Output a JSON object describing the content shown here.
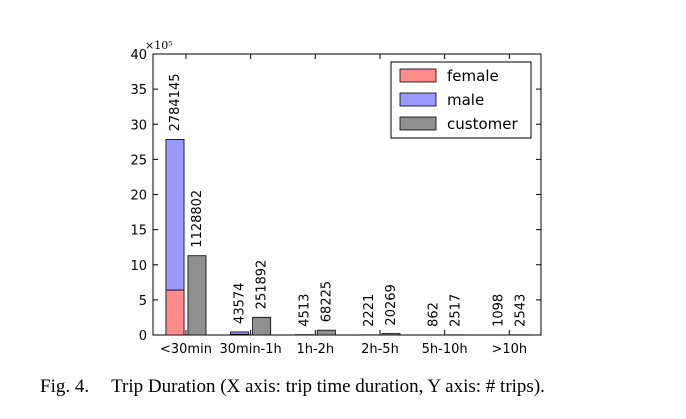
{
  "chart_data": {
    "type": "bar",
    "categories": [
      "<30min",
      "30min-1h",
      "1h-2h",
      "2h-5h",
      "5h-10h",
      ">10h"
    ],
    "series": [
      {
        "name": "female",
        "color": "#ff8b8b",
        "values": [
          640000,
          10000,
          1100,
          550,
          210,
          270
        ],
        "stack": "subscriber"
      },
      {
        "name": "male",
        "color": "#9999ff",
        "values": [
          2144145,
          33574,
          3413,
          1671,
          652,
          828
        ],
        "stack": "subscriber"
      },
      {
        "name": "customer",
        "color": "#8f8f8f",
        "values": [
          1128802,
          251892,
          68225,
          20269,
          2517,
          2543
        ],
        "stack": "customer"
      }
    ],
    "bar_labels": {
      "subscriber": [
        "2784145",
        "43574",
        "4513",
        "2221",
        "862",
        "1098"
      ],
      "customer": [
        "1128802",
        "251892",
        "68225",
        "20269",
        "2517",
        "2543"
      ]
    },
    "y_scale_label": "×10⁵",
    "y_scale": 100000,
    "ylim": [
      0,
      40
    ],
    "yticks": [
      "0",
      "5",
      "10",
      "15",
      "20",
      "25",
      "30",
      "35",
      "40"
    ],
    "legend": {
      "position": "top-right",
      "entries": [
        "female",
        "male",
        "customer"
      ]
    },
    "grid": false
  },
  "caption": {
    "label": "Fig. 4.",
    "text": "Trip Duration (X axis: trip time duration, Y axis: # trips)."
  }
}
